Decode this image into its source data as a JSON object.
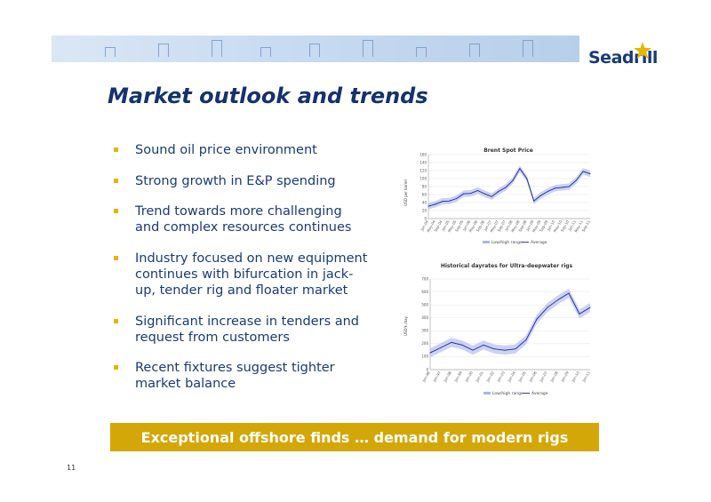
{
  "header": {
    "brand": "Seadrill",
    "title": "Market outlook and trends"
  },
  "bullets": [
    "Sound oil price environment",
    "Strong growth in E&P spending",
    "Trend towards more challenging and complex resources continues",
    "Industry focused on new equipment continues with bifurcation in jack-up, tender rig and floater market",
    "Significant increase in tenders and request from customers",
    "Recent fixtures suggest tighter market balance"
  ],
  "footer": {
    "tagline": "Exceptional offshore finds … demand for modern rigs",
    "page_number": "11"
  },
  "colors": {
    "title": "#15326e",
    "bullet_marker": "#e8b400",
    "footer_bar": "#d4a708",
    "series_line": "#1c2a8f",
    "range_band": "#aab3f0"
  },
  "chart_data": [
    {
      "type": "line",
      "title": "Brent Spot Price",
      "ylabel": "USD per barrel",
      "ylim": [
        0,
        160
      ],
      "yticks": [
        0,
        20,
        40,
        60,
        80,
        100,
        120,
        140,
        160
      ],
      "xticks": [
        "Jan-04",
        "May-04",
        "Sep-04",
        "Jan-05",
        "May-05",
        "Sep-05",
        "Jan-06",
        "May-06",
        "Sep-06",
        "Jan-07",
        "May-07",
        "Sep-07",
        "Jan-08",
        "May-08",
        "Sep-08",
        "Jan-09",
        "May-09",
        "Sep-09",
        "Jan-10",
        "May-10",
        "Sep-10",
        "Jan-11",
        "May-11",
        "Sep-11"
      ],
      "legend": [
        "Low/high range",
        "Average"
      ],
      "series": [
        {
          "name": "Average",
          "x": [
            "Jan-04",
            "May-04",
            "Sep-04",
            "Jan-05",
            "May-05",
            "Sep-05",
            "Jan-06",
            "May-06",
            "Sep-06",
            "Jan-07",
            "May-07",
            "Sep-07",
            "Jan-08",
            "May-08",
            "Sep-08",
            "Jan-09",
            "May-09",
            "Sep-09",
            "Jan-10",
            "May-10",
            "Sep-10",
            "Jan-11",
            "May-11",
            "Sep-11"
          ],
          "values": [
            31,
            36,
            43,
            44,
            50,
            62,
            63,
            70,
            62,
            55,
            68,
            78,
            95,
            125,
            100,
            44,
            58,
            68,
            76,
            78,
            80,
            95,
            118,
            112
          ]
        }
      ]
    },
    {
      "type": "line",
      "title": "Historical dayrates for Ultra-deepwater rigs",
      "ylabel": "USD'k /day",
      "ylim": [
        0,
        700
      ],
      "yticks": [
        0,
        100,
        200,
        300,
        400,
        500,
        600,
        700
      ],
      "xticks": [
        "Jan-96",
        "Jan-97",
        "Jan-98",
        "Jan-99",
        "Jan-00",
        "Jan-01",
        "Jan-02",
        "Jan-03",
        "Jan-04",
        "Jan-05",
        "Jan-06",
        "Jan-07",
        "Jan-08",
        "Jan-09",
        "Jan-10",
        "Jan-11"
      ],
      "legend": [
        "Low/high range",
        "Average"
      ],
      "series": [
        {
          "name": "Average",
          "x": [
            "Jan-96",
            "Jan-97",
            "Jan-98",
            "Jan-99",
            "Jan-00",
            "Jan-01",
            "Jan-02",
            "Jan-03",
            "Jan-04",
            "Jan-05",
            "Jan-06",
            "Jan-07",
            "Jan-08",
            "Jan-09",
            "Jan-10",
            "Jan-11"
          ],
          "values": [
            130,
            170,
            210,
            190,
            150,
            190,
            160,
            150,
            160,
            230,
            390,
            480,
            540,
            590,
            430,
            480
          ]
        }
      ]
    }
  ]
}
